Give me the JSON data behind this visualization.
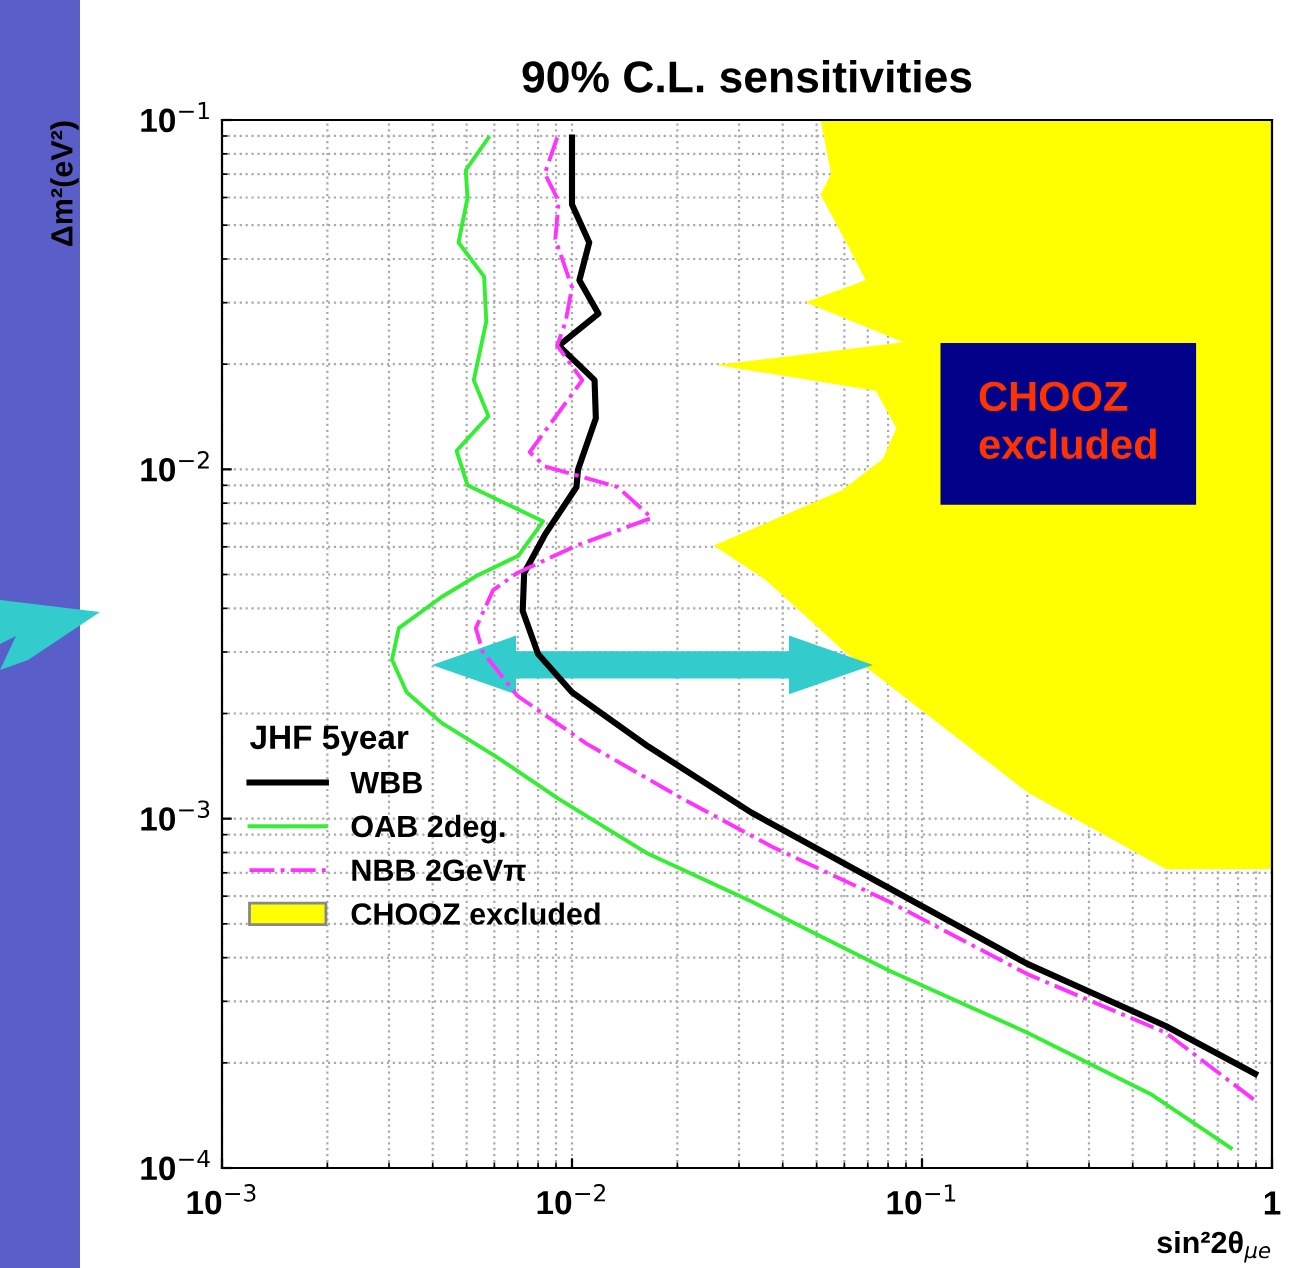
{
  "chart_data": {
    "type": "line",
    "title": "90% C.L. sensitivities",
    "xlabel": "sin²2θ$_{μe}$",
    "ylabel": "Δm²(eV²)",
    "legend_title": "JHF 5year",
    "log": "xy",
    "grid": true,
    "legend": "bottom left",
    "marker": "none",
    "xlim": [
      0.001,
      1
    ],
    "ylim": [
      0.0001,
      0.1
    ],
    "xticks": [
      {
        "value": 0.001,
        "label": "10$^{−3}$"
      },
      {
        "value": 0.01,
        "label": "10$^{−2}$"
      },
      {
        "value": 0.1,
        "label": "10$^{−1}$"
      },
      1
    ],
    "yticks": [
      {
        "value": 0.0001,
        "label": "10$^{−4}$"
      },
      {
        "value": 0.001,
        "label": "10$^{−3}$"
      },
      {
        "value": 0.01,
        "label": "10$^{−2}$"
      },
      {
        "value": 0.1,
        "label": "10$^{−1}$"
      }
    ],
    "annotations": [
      "CHOOZ\nexcluded"
    ],
    "series": [
      {
        "name": "WBB",
        "color": "#000000",
        "line_style": "solid",
        "x": [
          0.01,
          0.01,
          0.0112,
          0.0105,
          0.0119,
          0.00917,
          0.0116,
          0.0117,
          0.0104,
          0.0103,
          0.00836,
          0.0073,
          0.00723,
          0.008,
          0.01,
          0.0165,
          0.0326,
          0.0807,
          0.2,
          0.497,
          0.895
        ],
        "values": [
          0.089,
          0.0573,
          0.0446,
          0.0348,
          0.0279,
          0.0226,
          0.018,
          0.014,
          0.00997,
          0.0089,
          0.00649,
          0.00505,
          0.00393,
          0.00296,
          0.0023,
          0.00161,
          0.00104,
          0.000632,
          0.000384,
          0.000255,
          0.000186
        ]
      },
      {
        "name": "OAB 2deg.",
        "color": "#33ee33",
        "line_style": "solid",
        "x": [
          0.00577,
          0.00497,
          0.00503,
          0.00474,
          0.00561,
          0.00569,
          0.00524,
          0.00577,
          0.00468,
          0.00503,
          0.00826,
          0.00703,
          0.00531,
          0.00424,
          0.0032,
          0.00306,
          0.00337,
          0.00424,
          0.0061,
          0.00916,
          0.0165,
          0.0327,
          0.0807,
          0.2,
          0.454,
          0.763
        ],
        "values": [
          0.089,
          0.0718,
          0.0599,
          0.0446,
          0.0356,
          0.0265,
          0.018,
          0.0142,
          0.0113,
          0.009,
          0.0071,
          0.00566,
          0.00494,
          0.00431,
          0.00351,
          0.00285,
          0.0023,
          0.00188,
          0.0015,
          0.00114,
          0.000793,
          0.000578,
          0.000367,
          0.000244,
          0.000162,
          0.000114
        ]
      },
      {
        "name": "NBB 2GeVπ",
        "color": "#ff33ff",
        "line_style": "dashdot",
        "x": [
          0.00907,
          0.00836,
          0.00916,
          0.00896,
          0.01,
          0.00959,
          0.00907,
          0.0107,
          0.00757,
          0.00836,
          0.0135,
          0.0169,
          0.0103,
          0.00697,
          0.00595,
          0.00531,
          0.00556,
          0.00697,
          0.011,
          0.0207,
          0.0374,
          0.0807,
          0.2,
          0.497,
          0.895
        ],
        "values": [
          0.089,
          0.0702,
          0.0585,
          0.0456,
          0.0332,
          0.0265,
          0.0226,
          0.018,
          0.0112,
          0.0102,
          0.0089,
          0.00726,
          0.00605,
          0.00505,
          0.00451,
          0.00351,
          0.003,
          0.00225,
          0.00164,
          0.00114,
          0.00083,
          0.000578,
          0.000359,
          0.000244,
          0.000156
        ]
      },
      {
        "name": "CHOOZ excluded",
        "type": "area",
        "color": "#ffff00",
        "x": [
          0.0513,
          0.055,
          0.0513,
          0.0615,
          0.069,
          0.0465,
          0.0885,
          0.0258,
          0.0738,
          0.0845,
          0.0772,
          0.0589,
          0.0254,
          0.0357,
          0.0448,
          0.0602,
          0.0738,
          0.2,
          0.497,
          1,
          1
        ],
        "values": [
          0.1,
          0.0702,
          0.0612,
          0.0436,
          0.0348,
          0.0301,
          0.0231,
          0.0199,
          0.0168,
          0.0131,
          0.0107,
          0.0087,
          0.00605,
          0.00483,
          0.00393,
          0.003,
          0.00258,
          0.00119,
          0.000718,
          0.000718,
          0.1
        ]
      }
    ]
  }
}
